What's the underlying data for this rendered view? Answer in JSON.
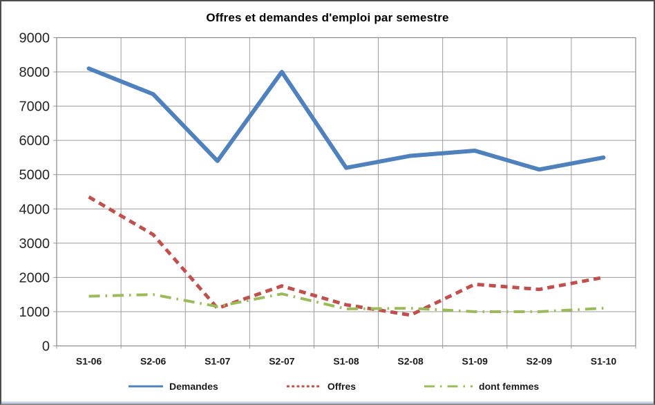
{
  "header": {
    "title": "Offres et demandes d'emploi par semestre"
  },
  "chart_data": {
    "type": "line",
    "title": "Offres et demandes d'emploi par semestre",
    "categories": [
      "S1-06",
      "S2-06",
      "S1-07",
      "S2-07",
      "S1-08",
      "S2-08",
      "S1-09",
      "S2-09",
      "S1-10"
    ],
    "series": [
      {
        "name": "Demandes",
        "color": "#4f81bd",
        "style": "solid",
        "values": [
          8100,
          7350,
          5400,
          8000,
          5200,
          5550,
          5700,
          5150,
          5500
        ]
      },
      {
        "name": "Offres",
        "color": "#c0504d",
        "style": "dashed",
        "values": [
          4350,
          3250,
          1100,
          1750,
          1200,
          900,
          1800,
          1650,
          2000
        ]
      },
      {
        "name": "dont femmes",
        "color": "#9bbb59",
        "style": "dash-dot",
        "values": [
          1450,
          1500,
          1150,
          1520,
          1080,
          1100,
          1000,
          1000,
          1100
        ]
      }
    ],
    "ylim": [
      0,
      9000
    ],
    "y_step": 1000,
    "y_ticks": [
      "9000",
      "8000",
      "7000",
      "6000",
      "5000",
      "4000",
      "3000",
      "2000",
      "1000",
      "0"
    ],
    "grid": "both",
    "legend_position": "bottom",
    "plot": {
      "background": "#ffffff",
      "grid_color": "#9b9b9b",
      "border_color": "#8a8a8a"
    }
  }
}
